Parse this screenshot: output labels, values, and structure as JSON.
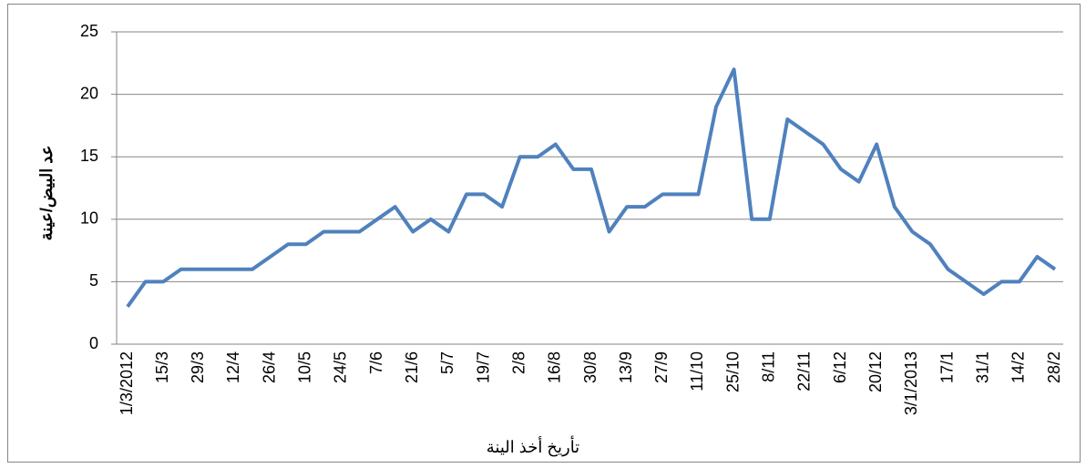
{
  "chart_data": {
    "type": "line",
    "y_label": "عد البيض/عينة",
    "x_label": "تأريخ أخذ الينة",
    "categories": [
      "1/3/2012",
      null,
      "15/3",
      null,
      "29/3",
      null,
      "12/4",
      null,
      "26/4",
      null,
      "10/5",
      null,
      "24/5",
      null,
      "7/6",
      null,
      "21/6",
      null,
      "5/7",
      null,
      "19/7",
      null,
      "2/8",
      null,
      "16/8",
      null,
      "30/8",
      null,
      "13/9",
      null,
      "27/9",
      null,
      "11/10",
      null,
      "25/10",
      null,
      "8/11",
      null,
      "22/11",
      null,
      "6/12",
      null,
      "20/12",
      null,
      "3/1/2013",
      null,
      "17/1",
      null,
      "31/1",
      null,
      "14/2",
      null,
      "28/2"
    ],
    "series": [
      {
        "color": "#4f81bd",
        "values": [
          3,
          5,
          5,
          6,
          6,
          6,
          6,
          6,
          7,
          8,
          8,
          9,
          9,
          9,
          10,
          11,
          9,
          10,
          9,
          12,
          12,
          11,
          15,
          15,
          16,
          14,
          14,
          9,
          11,
          11,
          12,
          12,
          12,
          19,
          22,
          10,
          10,
          18,
          17,
          16,
          14,
          13,
          16,
          11,
          9,
          8,
          6,
          5,
          4,
          5,
          5,
          7,
          6
        ]
      }
    ],
    "ylim": [
      0,
      25
    ],
    "yticks": [
      0,
      5,
      10,
      15,
      20,
      25
    ],
    "grid": true
  }
}
